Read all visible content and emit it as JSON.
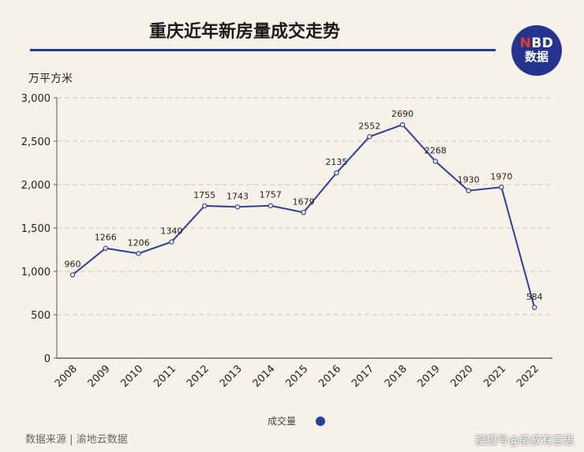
{
  "chart_data": {
    "type": "line",
    "title": "重庆近年新房量成交走势",
    "ylabel": "万平方米",
    "ylim": [
      0,
      3000
    ],
    "yticks": [
      "0",
      "500",
      "1,000",
      "1,500",
      "2,000",
      "2,500",
      "3,000"
    ],
    "grid": true,
    "legend_position": "bottom-center",
    "x": [
      "2008",
      "2009",
      "2010",
      "2011",
      "2012",
      "2013",
      "2014",
      "2015",
      "2016",
      "2017",
      "2018",
      "2019",
      "2020",
      "2021",
      "2022"
    ],
    "series": [
      {
        "name": "成交量",
        "values": [
          960,
          1266,
          1206,
          1340,
          1755,
          1743,
          1757,
          1679,
          2135,
          2552,
          2690,
          2268,
          1930,
          1970,
          584
        ],
        "color": "#2a3f9e"
      }
    ]
  },
  "logo": {
    "line1_accent": "N",
    "line1_rest": "BD",
    "line2": "数据"
  },
  "footer": {
    "source": "数据来源 | 渝地云数据",
    "credit": "搜狐号@房叔有意思"
  },
  "colors": {
    "accent": "#26389c",
    "background": "#f6f2ea",
    "grid": "#c9c4bc"
  }
}
